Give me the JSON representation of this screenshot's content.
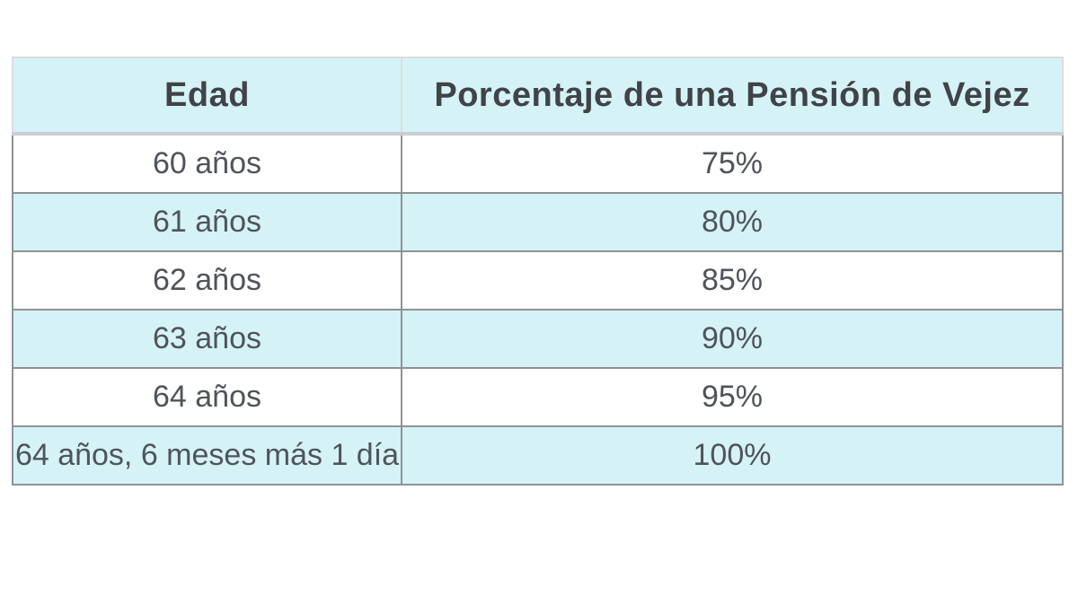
{
  "chart_data": {
    "type": "table",
    "title": "",
    "columns": [
      "Edad",
      "Porcentaje de una Pensión de Vejez"
    ],
    "rows": [
      [
        "60 años",
        "75%"
      ],
      [
        "61 años",
        "80%"
      ],
      [
        "62 años",
        "85%"
      ],
      [
        "63 años",
        "90%"
      ],
      [
        "64 años",
        "95%"
      ],
      [
        "64 años, 6 meses más 1 día",
        "100%"
      ]
    ],
    "categories": [
      "60 años",
      "61 años",
      "62 años",
      "63 años",
      "64 años",
      "64 años, 6 meses más 1 día"
    ],
    "values": [
      75,
      80,
      85,
      90,
      95,
      100
    ],
    "layout_hints": {
      "zebra_striping": "even rows cyan, odd rows white",
      "text_alignment": "center"
    }
  },
  "colors": {
    "header_bg": "#d5f3f7",
    "row_alt_bg": "#d5f3f7",
    "row_bg": "#ffffff",
    "header_text": "#404347",
    "body_text": "#4f545a",
    "border_dark": "#8f9294",
    "border_light": "#dcdcdc",
    "header_separator": "#cbced0",
    "page_bg": "#ffffff"
  }
}
